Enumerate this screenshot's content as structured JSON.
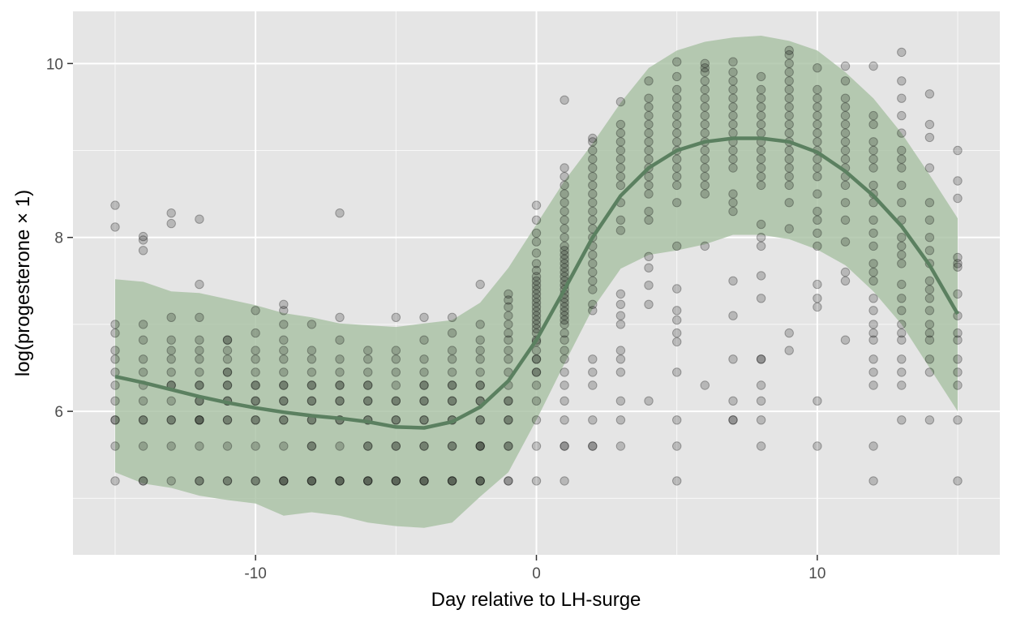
{
  "chart_data": {
    "type": "scatter",
    "title": "",
    "xlabel": "Day relative to LH-surge",
    "ylabel": "log(progesterone × 1)",
    "xlim": [
      -16.5,
      16.5
    ],
    "ylim": [
      4.35,
      10.6
    ],
    "x_ticks": [
      -10,
      0,
      10
    ],
    "x_tick_labels": [
      "-10",
      "0",
      "10"
    ],
    "y_ticks": [
      6,
      8,
      10
    ],
    "y_tick_labels": [
      "6",
      "8",
      "10"
    ],
    "grid": true,
    "legend": "none",
    "colors": {
      "panel": "#e5e5e5",
      "points": "#000000",
      "smooth_line": "#5b8060",
      "ribbon": "#a7c0a3"
    },
    "series": [
      {
        "kind": "smooth_line_with_band",
        "x": [
          -15,
          -14,
          -13,
          -12,
          -11,
          -10,
          -9,
          -8,
          -7,
          -6,
          -5,
          -4,
          -3,
          -2,
          -1,
          0,
          1,
          2,
          3,
          4,
          5,
          6,
          7,
          8,
          9,
          10,
          11,
          12,
          13,
          14,
          15
        ],
        "y": [
          6.4,
          6.33,
          6.25,
          6.17,
          6.1,
          6.04,
          5.99,
          5.95,
          5.92,
          5.88,
          5.82,
          5.81,
          5.88,
          6.05,
          6.35,
          6.82,
          7.4,
          8.0,
          8.48,
          8.8,
          9.0,
          9.1,
          9.14,
          9.14,
          9.1,
          8.98,
          8.76,
          8.48,
          8.13,
          7.68,
          7.12
        ],
        "lower": [
          5.3,
          5.17,
          5.12,
          5.03,
          4.98,
          4.94,
          4.8,
          4.84,
          4.8,
          4.72,
          4.68,
          4.66,
          4.72,
          5.02,
          5.3,
          5.9,
          6.55,
          7.18,
          7.64,
          7.8,
          7.85,
          7.92,
          8.03,
          8.03,
          7.98,
          7.86,
          7.68,
          7.38,
          7.0,
          6.5,
          6.0
        ],
        "upper": [
          7.52,
          7.49,
          7.38,
          7.36,
          7.29,
          7.22,
          7.13,
          7.08,
          7.01,
          6.99,
          6.97,
          7.01,
          7.05,
          7.25,
          7.65,
          8.15,
          8.65,
          9.08,
          9.55,
          9.95,
          10.15,
          10.25,
          10.3,
          10.32,
          10.26,
          10.15,
          9.9,
          9.6,
          9.2,
          8.72,
          8.22
        ]
      }
    ],
    "scatter_points": [
      [
        -15,
        [
          5.2,
          5.6,
          5.9,
          5.9,
          6.12,
          6.3,
          6.45,
          6.6,
          6.7,
          6.9,
          7.0,
          8.12,
          8.37
        ]
      ],
      [
        -14,
        [
          5.2,
          5.2,
          5.6,
          5.9,
          5.9,
          6.12,
          6.3,
          6.45,
          6.6,
          6.82,
          7.0,
          7.85,
          7.97,
          8.01
        ]
      ],
      [
        -13,
        [
          5.2,
          5.6,
          5.9,
          5.9,
          6.12,
          6.3,
          6.3,
          6.45,
          6.6,
          6.7,
          6.82,
          7.08,
          8.16,
          8.28
        ]
      ],
      [
        -12,
        [
          5.2,
          5.2,
          5.6,
          5.9,
          5.9,
          5.9,
          6.12,
          6.12,
          6.3,
          6.3,
          6.45,
          6.6,
          6.7,
          6.82,
          7.08,
          7.46,
          8.21
        ]
      ],
      [
        -11,
        [
          5.2,
          5.2,
          5.6,
          5.9,
          5.9,
          6.12,
          6.12,
          6.3,
          6.3,
          6.45,
          6.45,
          6.6,
          6.7,
          6.82,
          6.82
        ]
      ],
      [
        -10,
        [
          5.2,
          5.2,
          5.6,
          5.9,
          5.9,
          6.12,
          6.12,
          6.3,
          6.3,
          6.45,
          6.6,
          6.7,
          6.9,
          7.16
        ]
      ],
      [
        -9,
        [
          5.2,
          5.2,
          5.2,
          5.6,
          5.9,
          5.9,
          6.12,
          6.12,
          6.3,
          6.3,
          6.45,
          6.6,
          6.7,
          6.82,
          7.0,
          7.16,
          7.23
        ]
      ],
      [
        -8,
        [
          5.2,
          5.2,
          5.2,
          5.6,
          5.6,
          5.9,
          5.9,
          6.12,
          6.12,
          6.3,
          6.3,
          6.45,
          6.6,
          6.7,
          7.0
        ]
      ],
      [
        -7,
        [
          5.2,
          5.2,
          5.2,
          5.6,
          5.9,
          5.9,
          6.12,
          6.12,
          6.3,
          6.3,
          6.45,
          6.6,
          6.82,
          7.08,
          8.28
        ]
      ],
      [
        -6,
        [
          5.2,
          5.2,
          5.2,
          5.6,
          5.6,
          5.9,
          5.9,
          6.12,
          6.12,
          6.3,
          6.3,
          6.45,
          6.6,
          6.7
        ]
      ],
      [
        -5,
        [
          5.2,
          5.2,
          5.2,
          5.6,
          5.6,
          5.9,
          5.9,
          6.12,
          6.12,
          6.3,
          6.45,
          6.6,
          6.7,
          7.08
        ]
      ],
      [
        -4,
        [
          5.2,
          5.2,
          5.2,
          5.6,
          5.6,
          5.9,
          5.9,
          6.12,
          6.12,
          6.3,
          6.3,
          6.45,
          6.6,
          6.82,
          7.08
        ]
      ],
      [
        -3,
        [
          5.2,
          5.2,
          5.2,
          5.6,
          5.6,
          5.9,
          5.9,
          6.12,
          6.12,
          6.3,
          6.3,
          6.45,
          6.6,
          6.7,
          6.9,
          7.08
        ]
      ],
      [
        -2,
        [
          5.2,
          5.2,
          5.2,
          5.6,
          5.6,
          5.6,
          5.9,
          5.9,
          6.12,
          6.12,
          6.3,
          6.3,
          6.45,
          6.6,
          6.7,
          6.82,
          7.0,
          7.46
        ]
      ],
      [
        -1,
        [
          5.2,
          5.2,
          5.6,
          5.6,
          5.9,
          5.9,
          6.12,
          6.12,
          6.3,
          6.45,
          6.6,
          6.7,
          6.82,
          6.9,
          7.0,
          7.1,
          7.2,
          7.28,
          7.35
        ]
      ],
      [
        0,
        [
          5.2,
          5.6,
          5.9,
          6.12,
          6.3,
          6.45,
          6.45,
          6.6,
          6.6,
          6.7,
          6.8,
          6.82,
          6.9,
          6.95,
          7.0,
          7.05,
          7.1,
          7.15,
          7.2,
          7.25,
          7.3,
          7.35,
          7.4,
          7.45,
          7.5,
          7.55,
          7.62,
          7.7,
          7.82,
          7.95,
          8.05,
          8.2,
          8.37
        ]
      ],
      [
        1,
        [
          5.2,
          5.6,
          5.6,
          5.9,
          6.12,
          6.3,
          6.45,
          6.6,
          6.7,
          6.82,
          6.9,
          7.0,
          7.05,
          7.1,
          7.15,
          7.2,
          7.25,
          7.3,
          7.35,
          7.4,
          7.45,
          7.5,
          7.55,
          7.6,
          7.65,
          7.7,
          7.75,
          7.8,
          7.85,
          7.9,
          8.0,
          8.1,
          8.2,
          8.3,
          8.4,
          8.5,
          8.6,
          8.7,
          8.8,
          9.58
        ]
      ],
      [
        2,
        [
          5.6,
          5.6,
          5.9,
          6.3,
          6.45,
          6.6,
          7.16,
          7.23,
          7.4,
          7.5,
          7.6,
          7.7,
          7.8,
          7.9,
          8.0,
          8.1,
          8.2,
          8.3,
          8.4,
          8.5,
          8.6,
          8.7,
          8.8,
          8.9,
          9.0,
          9.1,
          9.14
        ]
      ],
      [
        3,
        [
          5.6,
          5.9,
          6.12,
          6.45,
          6.6,
          6.7,
          7.0,
          7.1,
          7.23,
          7.35,
          8.08,
          8.2,
          8.4,
          8.6,
          8.7,
          8.8,
          8.9,
          9.0,
          9.1,
          9.2,
          9.3,
          9.56
        ]
      ],
      [
        4,
        [
          6.12,
          7.23,
          7.45,
          7.65,
          7.78,
          8.2,
          8.3,
          8.5,
          8.6,
          8.7,
          8.8,
          8.9,
          9.0,
          9.1,
          9.2,
          9.3,
          9.4,
          9.5,
          9.6,
          9.8
        ]
      ],
      [
        5,
        [
          5.2,
          5.6,
          5.9,
          6.45,
          6.8,
          6.9,
          7.05,
          7.16,
          7.41,
          7.9,
          8.4,
          8.6,
          8.7,
          8.8,
          8.9,
          9.0,
          9.1,
          9.2,
          9.3,
          9.4,
          9.5,
          9.6,
          9.7,
          9.85,
          10.02
        ]
      ],
      [
        6,
        [
          6.3,
          7.9,
          8.5,
          8.6,
          8.7,
          8.8,
          8.9,
          9.0,
          9.1,
          9.2,
          9.3,
          9.4,
          9.5,
          9.6,
          9.7,
          9.8,
          9.9,
          9.95,
          10.0
        ]
      ],
      [
        7,
        [
          5.9,
          5.9,
          6.12,
          6.6,
          7.1,
          7.5,
          8.3,
          8.4,
          8.5,
          8.8,
          8.9,
          9.0,
          9.1,
          9.2,
          9.3,
          9.4,
          9.5,
          9.6,
          9.7,
          9.8,
          9.9,
          10.02
        ]
      ],
      [
        8,
        [
          5.6,
          5.9,
          6.12,
          6.3,
          6.6,
          6.6,
          7.3,
          7.56,
          7.9,
          8.0,
          8.15,
          8.6,
          8.7,
          8.8,
          8.9,
          9.0,
          9.1,
          9.2,
          9.3,
          9.4,
          9.5,
          9.6,
          9.7,
          9.85
        ]
      ],
      [
        9,
        [
          6.7,
          6.9,
          8.1,
          8.4,
          8.6,
          8.7,
          8.8,
          8.9,
          9.0,
          9.1,
          9.2,
          9.3,
          9.4,
          9.5,
          9.6,
          9.7,
          9.8,
          9.9,
          10.0,
          10.1,
          10.15
        ]
      ],
      [
        10,
        [
          5.6,
          6.12,
          7.2,
          7.3,
          7.46,
          7.9,
          8.05,
          8.2,
          8.3,
          8.5,
          8.7,
          8.8,
          8.9,
          9.0,
          9.1,
          9.2,
          9.3,
          9.4,
          9.5,
          9.6,
          9.7,
          9.95
        ]
      ],
      [
        11,
        [
          6.82,
          7.5,
          7.6,
          7.95,
          8.2,
          8.4,
          8.6,
          8.7,
          8.8,
          8.9,
          9.0,
          9.1,
          9.2,
          9.3,
          9.4,
          9.5,
          9.6,
          9.8,
          9.97
        ]
      ],
      [
        12,
        [
          5.2,
          5.6,
          6.3,
          6.45,
          6.6,
          6.82,
          6.9,
          7.0,
          7.16,
          7.3,
          7.5,
          7.6,
          7.7,
          7.9,
          8.05,
          8.2,
          8.4,
          8.5,
          8.6,
          8.8,
          8.9,
          9.0,
          9.1,
          9.3,
          9.4,
          9.97
        ]
      ],
      [
        13,
        [
          5.9,
          6.3,
          6.45,
          6.6,
          6.82,
          6.9,
          7.0,
          7.16,
          7.3,
          7.46,
          7.7,
          7.8,
          7.9,
          8.0,
          8.2,
          8.4,
          8.6,
          8.8,
          8.9,
          9.0,
          9.2,
          9.4,
          9.6,
          9.8,
          10.13
        ]
      ],
      [
        14,
        [
          5.9,
          6.45,
          6.6,
          6.82,
          6.9,
          7.0,
          7.16,
          7.3,
          7.4,
          7.5,
          7.7,
          7.85,
          8.0,
          8.2,
          8.4,
          8.8,
          9.15,
          9.3,
          9.65
        ]
      ],
      [
        15,
        [
          5.2,
          5.9,
          6.3,
          6.45,
          6.6,
          6.82,
          6.9,
          7.1,
          7.35,
          7.66,
          7.7,
          7.77,
          8.45,
          8.65,
          9.0
        ]
      ]
    ]
  }
}
